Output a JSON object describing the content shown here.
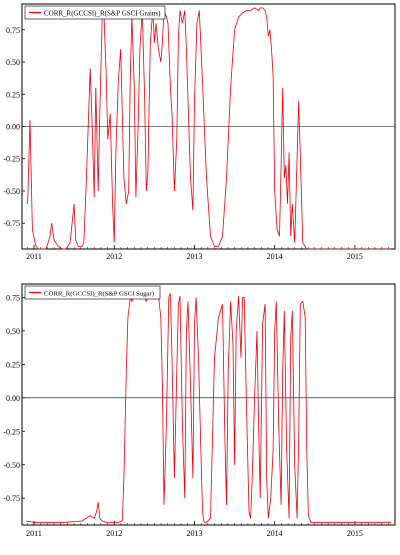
{
  "chart_data": [
    {
      "type": "line",
      "title": "",
      "xlabel": "",
      "ylabel": "",
      "xlim": [
        2010.85,
        2015.5
      ],
      "ylim": [
        -0.95,
        0.95
      ],
      "x_ticks": [
        {
          "value": 2011,
          "label": "2011"
        },
        {
          "value": 2012,
          "label": "2012"
        },
        {
          "value": 2013,
          "label": "2013"
        },
        {
          "value": 2014,
          "label": "2014"
        },
        {
          "value": 2015,
          "label": "2015"
        }
      ],
      "y_ticks": [
        {
          "value": 0.75,
          "label": "0.75"
        },
        {
          "value": 0.5,
          "label": "0.50"
        },
        {
          "value": 0.25,
          "label": "0.25"
        },
        {
          "value": 0,
          "label": "0.00"
        },
        {
          "value": -0.25,
          "label": "-0.25"
        },
        {
          "value": -0.5,
          "label": "-0.50"
        },
        {
          "value": -0.75,
          "label": "-0.75"
        }
      ],
      "legend_position": "top-left",
      "zero_line": true,
      "series": [
        {
          "name": "CORR_R(GCCSI)_R(S&P GSCI Grains)",
          "color": "#e8000b",
          "x": [
            2010.92,
            2010.95,
            2010.98,
            2011.02,
            2011.05,
            2011.1,
            2011.15,
            2011.2,
            2011.22,
            2011.25,
            2011.3,
            2011.35,
            2011.4,
            2011.45,
            2011.5,
            2011.52,
            2011.55,
            2011.6,
            2011.62,
            2011.65,
            2011.7,
            2011.72,
            2011.75,
            2011.77,
            2011.8,
            2011.82,
            2011.85,
            2011.87,
            2011.9,
            2011.92,
            2011.95,
            2011.98,
            2012.0,
            2012.02,
            2012.05,
            2012.08,
            2012.1,
            2012.12,
            2012.15,
            2012.18,
            2012.2,
            2012.22,
            2012.25,
            2012.27,
            2012.3,
            2012.32,
            2012.35,
            2012.38,
            2012.4,
            2012.42,
            2012.45,
            2012.48,
            2012.5,
            2012.52,
            2012.55,
            2012.58,
            2012.6,
            2012.62,
            2012.65,
            2012.67,
            2012.7,
            2012.72,
            2012.75,
            2012.78,
            2012.8,
            2012.82,
            2012.85,
            2012.88,
            2012.9,
            2012.92,
            2012.95,
            2012.98,
            2013.0,
            2013.03,
            2013.06,
            2013.1,
            2013.15,
            2013.2,
            2013.25,
            2013.3,
            2013.35,
            2013.4,
            2013.45,
            2013.5,
            2013.55,
            2013.6,
            2013.65,
            2013.7,
            2013.75,
            2013.8,
            2013.82,
            2013.85,
            2013.88,
            2013.9,
            2013.92,
            2013.94,
            2013.96,
            2013.98,
            2014.0,
            2014.03,
            2014.06,
            2014.08,
            2014.1,
            2014.12,
            2014.14,
            2014.16,
            2014.18,
            2014.2,
            2014.22,
            2014.25,
            2014.3,
            2014.35,
            2014.4,
            2014.5,
            2014.7,
            2015.0,
            2015.3,
            2015.45
          ],
          "y": [
            -0.6,
            0.05,
            -0.8,
            -0.92,
            -0.95,
            -0.95,
            -0.95,
            -0.85,
            -0.75,
            -0.88,
            -0.93,
            -0.95,
            -0.95,
            -0.9,
            -0.6,
            -0.88,
            -0.93,
            -0.93,
            -0.9,
            -0.45,
            0.45,
            0.1,
            -0.55,
            0.3,
            -0.5,
            0.1,
            0.85,
            0.9,
            0.4,
            -0.1,
            0.1,
            -0.6,
            -0.9,
            -0.2,
            0.35,
            0.6,
            0.1,
            -0.4,
            -0.6,
            -0.5,
            0.4,
            0.85,
            0.3,
            -0.55,
            0.05,
            0.6,
            0.9,
            0.2,
            -0.5,
            -0.35,
            0.65,
            0.9,
            0.65,
            0.8,
            0.6,
            0.5,
            0.65,
            0.9,
            0.85,
            0.8,
            0.3,
            0.1,
            -0.5,
            -0.1,
            0.7,
            0.9,
            0.8,
            0.9,
            0.6,
            0.2,
            -0.4,
            -0.65,
            0.2,
            0.8,
            0.9,
            0.35,
            -0.4,
            -0.85,
            -0.93,
            -0.93,
            -0.85,
            -0.4,
            0.3,
            0.75,
            0.85,
            0.88,
            0.9,
            0.9,
            0.92,
            0.9,
            0.92,
            0.92,
            0.9,
            0.85,
            0.7,
            0.75,
            0.6,
            0.4,
            -0.5,
            -0.8,
            -0.85,
            -0.3,
            0.3,
            -0.4,
            -0.3,
            -0.6,
            -0.2,
            -0.85,
            -0.6,
            -0.9,
            0.2,
            -0.9,
            -0.95,
            -0.95,
            -0.95,
            -0.95,
            -0.95,
            -0.95
          ]
        }
      ]
    },
    {
      "type": "line",
      "title": "",
      "xlabel": "",
      "ylabel": "",
      "xlim": [
        2010.85,
        2015.5
      ],
      "ylim": [
        -0.95,
        0.85
      ],
      "x_ticks": [
        {
          "value": 2011,
          "label": "2011"
        },
        {
          "value": 2012,
          "label": "2012"
        },
        {
          "value": 2013,
          "label": "2013"
        },
        {
          "value": 2014,
          "label": "2014"
        },
        {
          "value": 2015,
          "label": "2015"
        }
      ],
      "y_ticks": [
        {
          "value": 0.75,
          "label": "0.75"
        },
        {
          "value": 0.5,
          "label": "0.50"
        },
        {
          "value": 0.25,
          "label": "0.25"
        },
        {
          "value": 0,
          "label": "0.00"
        },
        {
          "value": -0.25,
          "label": "-0.25"
        },
        {
          "value": -0.5,
          "label": "-0.50"
        },
        {
          "value": -0.75,
          "label": "-0.75"
        }
      ],
      "legend_position": "top-left",
      "zero_line": true,
      "series": [
        {
          "name": "CORR_R(GCCSI)_R(S&P GSCI Sugar)",
          "color": "#e8000b",
          "x": [
            2010.9,
            2011.0,
            2011.2,
            2011.4,
            2011.6,
            2011.7,
            2011.75,
            2011.78,
            2011.8,
            2011.82,
            2011.85,
            2011.9,
            2011.95,
            2012.0,
            2012.05,
            2012.1,
            2012.12,
            2012.15,
            2012.17,
            2012.2,
            2012.22,
            2012.25,
            2012.3,
            2012.35,
            2012.4,
            2012.45,
            2012.5,
            2012.55,
            2012.58,
            2012.6,
            2012.62,
            2012.65,
            2012.68,
            2012.7,
            2012.72,
            2012.75,
            2012.78,
            2012.8,
            2012.82,
            2012.85,
            2012.88,
            2012.9,
            2012.92,
            2012.95,
            2012.98,
            2013.0,
            2013.02,
            2013.05,
            2013.08,
            2013.1,
            2013.12,
            2013.15,
            2013.2,
            2013.25,
            2013.3,
            2013.35,
            2013.38,
            2013.4,
            2013.42,
            2013.45,
            2013.48,
            2013.5,
            2013.52,
            2013.55,
            2013.58,
            2013.6,
            2013.62,
            2013.65,
            2013.68,
            2013.7,
            2013.72,
            2013.75,
            2013.78,
            2013.8,
            2013.82,
            2013.85,
            2013.88,
            2013.9,
            2013.92,
            2013.95,
            2013.98,
            2014.0,
            2014.02,
            2014.05,
            2014.08,
            2014.1,
            2014.12,
            2014.15,
            2014.18,
            2014.2,
            2014.22,
            2014.25,
            2014.28,
            2014.3,
            2014.32,
            2014.35,
            2014.38,
            2014.4,
            2014.42,
            2014.45,
            2014.5,
            2014.6,
            2014.8,
            2015.0,
            2015.2,
            2015.45
          ],
          "y": [
            -0.92,
            -0.93,
            -0.93,
            -0.93,
            -0.92,
            -0.88,
            -0.9,
            -0.85,
            -0.78,
            -0.9,
            -0.92,
            -0.93,
            -0.93,
            -0.93,
            -0.93,
            -0.92,
            -0.6,
            0.2,
            0.6,
            0.75,
            0.72,
            0.76,
            0.75,
            0.78,
            0.72,
            0.78,
            0.75,
            0.77,
            0.6,
            0.1,
            -0.8,
            -0.2,
            0.75,
            0.78,
            0.3,
            -0.6,
            0.2,
            0.7,
            0.76,
            -0.2,
            -0.75,
            0.5,
            0.72,
            0.1,
            -0.6,
            0.55,
            0.75,
            0.3,
            -0.4,
            -0.85,
            -0.93,
            -0.93,
            -0.9,
            0.3,
            0.6,
            0.7,
            -0.3,
            -0.8,
            0.2,
            0.72,
            0.4,
            -0.5,
            0.5,
            0.76,
            0.3,
            0.75,
            0.75,
            -0.1,
            -0.85,
            -0.9,
            -0.6,
            0.0,
            0.5,
            -0.2,
            -0.75,
            0.55,
            0.7,
            -0.6,
            -0.9,
            -0.75,
            -0.4,
            0.5,
            0.72,
            -0.2,
            -0.8,
            0.2,
            0.65,
            -0.4,
            -0.9,
            0.45,
            0.65,
            -0.5,
            -0.9,
            -0.3,
            0.7,
            0.72,
            0.6,
            -0.4,
            -0.88,
            -0.93,
            -0.93,
            -0.93,
            -0.93,
            -0.93,
            -0.93,
            -0.93
          ]
        }
      ]
    }
  ]
}
